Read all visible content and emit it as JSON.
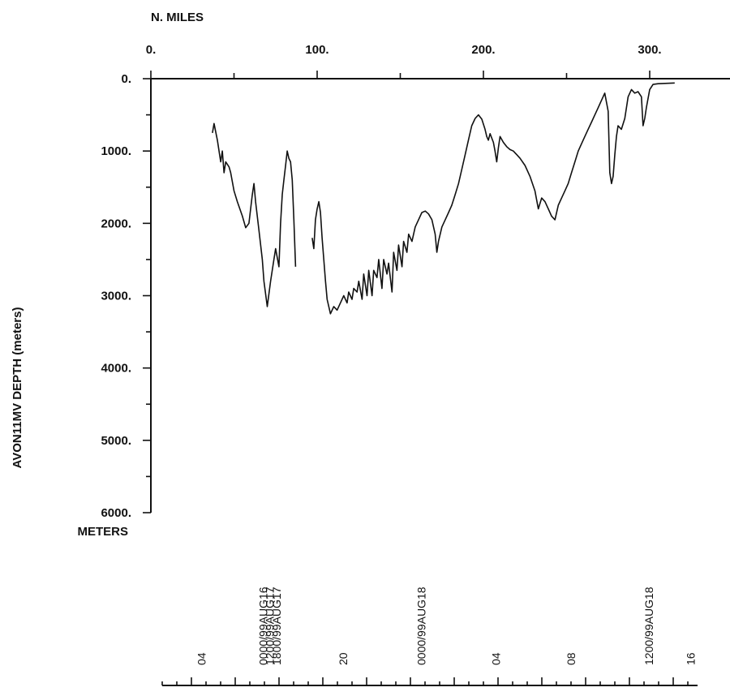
{
  "chart_data": {
    "type": "line",
    "title": "",
    "x_axis": {
      "label": "N. MILES",
      "ticks": [
        0,
        100,
        200,
        300
      ],
      "tick_labels": [
        "0.",
        "100.",
        "200.",
        "300."
      ],
      "range": [
        0,
        345
      ]
    },
    "y_axis": {
      "label": "AVON11MV DEPTH (meters)",
      "ticks": [
        0,
        1000,
        2000,
        3000,
        4000,
        5000,
        6000
      ],
      "tick_labels": [
        "0.",
        "1000.",
        "2000.",
        "3000.",
        "4000.",
        "5000.",
        "6000."
      ],
      "unit_label": "METERS",
      "range": [
        0,
        6000
      ],
      "inverted": true
    },
    "series": [
      {
        "segments": [
          [
            [
              37,
              750
            ],
            [
              38,
              620
            ],
            [
              40,
              850
            ],
            [
              42,
              1150
            ],
            [
              43,
              1000
            ],
            [
              44,
              1300
            ],
            [
              45,
              1150
            ],
            [
              47,
              1220
            ],
            [
              48,
              1300
            ],
            [
              50,
              1550
            ],
            [
              52,
              1700
            ],
            [
              55,
              1900
            ],
            [
              57,
              2060
            ],
            [
              59,
              2000
            ],
            [
              61,
              1600
            ],
            [
              62,
              1450
            ],
            [
              63,
              1700
            ],
            [
              65,
              2100
            ],
            [
              67,
              2500
            ],
            [
              68,
              2800
            ],
            [
              70,
              3150
            ],
            [
              72,
              2800
            ],
            [
              74,
              2500
            ],
            [
              75,
              2350
            ],
            [
              77,
              2600
            ],
            [
              78,
              2000
            ],
            [
              79,
              1600
            ],
            [
              80,
              1400
            ],
            [
              81,
              1200
            ],
            [
              82,
              1000
            ],
            [
              83,
              1100
            ],
            [
              84,
              1150
            ],
            [
              85,
              1400
            ],
            [
              86,
              1950
            ],
            [
              87,
              2600
            ]
          ],
          [
            [
              97,
              2200
            ],
            [
              98,
              2350
            ],
            [
              99,
              1950
            ],
            [
              100,
              1800
            ],
            [
              101,
              1700
            ],
            [
              102,
              1850
            ],
            [
              103,
              2200
            ],
            [
              104,
              2500
            ],
            [
              105,
              2800
            ],
            [
              106,
              3050
            ],
            [
              108,
              3250
            ],
            [
              110,
              3150
            ],
            [
              112,
              3200
            ],
            [
              114,
              3100
            ],
            [
              116,
              3000
            ],
            [
              118,
              3100
            ],
            [
              119,
              2950
            ],
            [
              121,
              3050
            ],
            [
              122,
              2900
            ],
            [
              124,
              2950
            ],
            [
              125,
              2800
            ],
            [
              127,
              3050
            ],
            [
              128,
              2700
            ],
            [
              130,
              3000
            ],
            [
              131,
              2650
            ],
            [
              133,
              3000
            ],
            [
              134,
              2650
            ],
            [
              136,
              2750
            ],
            [
              137,
              2500
            ],
            [
              139,
              2900
            ],
            [
              140,
              2500
            ],
            [
              142,
              2700
            ],
            [
              143,
              2550
            ],
            [
              145,
              2950
            ],
            [
              146,
              2400
            ],
            [
              148,
              2650
            ],
            [
              149,
              2300
            ],
            [
              151,
              2600
            ],
            [
              152,
              2250
            ],
            [
              154,
              2400
            ],
            [
              155,
              2150
            ],
            [
              157,
              2250
            ],
            [
              159,
              2050
            ],
            [
              161,
              1950
            ],
            [
              163,
              1850
            ],
            [
              165,
              1830
            ],
            [
              167,
              1870
            ],
            [
              169,
              1950
            ],
            [
              171,
              2150
            ],
            [
              172,
              2400
            ],
            [
              173,
              2250
            ],
            [
              175,
              2050
            ],
            [
              177,
              1950
            ],
            [
              179,
              1850
            ],
            [
              181,
              1750
            ],
            [
              183,
              1600
            ],
            [
              185,
              1450
            ],
            [
              187,
              1250
            ],
            [
              189,
              1050
            ],
            [
              191,
              850
            ],
            [
              193,
              650
            ],
            [
              195,
              550
            ],
            [
              197,
              500
            ],
            [
              199,
              560
            ],
            [
              201,
              700
            ],
            [
              202,
              800
            ],
            [
              203,
              850
            ],
            [
              204,
              760
            ],
            [
              206,
              880
            ],
            [
              207,
              1000
            ],
            [
              208,
              1150
            ],
            [
              209,
              950
            ],
            [
              210,
              800
            ],
            [
              212,
              880
            ],
            [
              214,
              940
            ],
            [
              216,
              980
            ],
            [
              218,
              1000
            ],
            [
              220,
              1050
            ],
            [
              222,
              1100
            ],
            [
              225,
              1200
            ],
            [
              228,
              1350
            ],
            [
              231,
              1550
            ],
            [
              233,
              1800
            ],
            [
              235,
              1650
            ],
            [
              237,
              1700
            ],
            [
              239,
              1800
            ],
            [
              241,
              1900
            ],
            [
              243,
              1950
            ],
            [
              245,
              1750
            ],
            [
              247,
              1650
            ],
            [
              249,
              1550
            ],
            [
              251,
              1450
            ],
            [
              253,
              1300
            ],
            [
              255,
              1150
            ],
            [
              257,
              1000
            ],
            [
              259,
              900
            ],
            [
              261,
              800
            ],
            [
              263,
              700
            ],
            [
              265,
              600
            ],
            [
              267,
              500
            ],
            [
              269,
              400
            ],
            [
              271,
              300
            ],
            [
              273,
              200
            ],
            [
              275,
              450
            ],
            [
              276,
              1300
            ],
            [
              277,
              1450
            ],
            [
              278,
              1350
            ],
            [
              279,
              1050
            ],
            [
              280,
              800
            ],
            [
              281,
              650
            ],
            [
              283,
              700
            ],
            [
              285,
              550
            ],
            [
              287,
              250
            ],
            [
              289,
              150
            ],
            [
              291,
              200
            ],
            [
              293,
              180
            ],
            [
              295,
              250
            ],
            [
              296,
              650
            ],
            [
              297,
              550
            ],
            [
              298,
              400
            ],
            [
              300,
              150
            ],
            [
              302,
              80
            ],
            [
              305,
              70
            ],
            [
              315,
              60
            ]
          ]
        ]
      }
    ],
    "time_axis": {
      "labels": [
        "04",
        "0000/99AUG16",
        "1200/99AUG17",
        "1800/99AUG17",
        "20",
        "0000/99AUG18",
        "04",
        "08",
        "1200/99AUG18",
        "16"
      ],
      "label_positions_miles": [
        33,
        70,
        74,
        78,
        118,
        165,
        210,
        255,
        302,
        327
      ]
    }
  }
}
